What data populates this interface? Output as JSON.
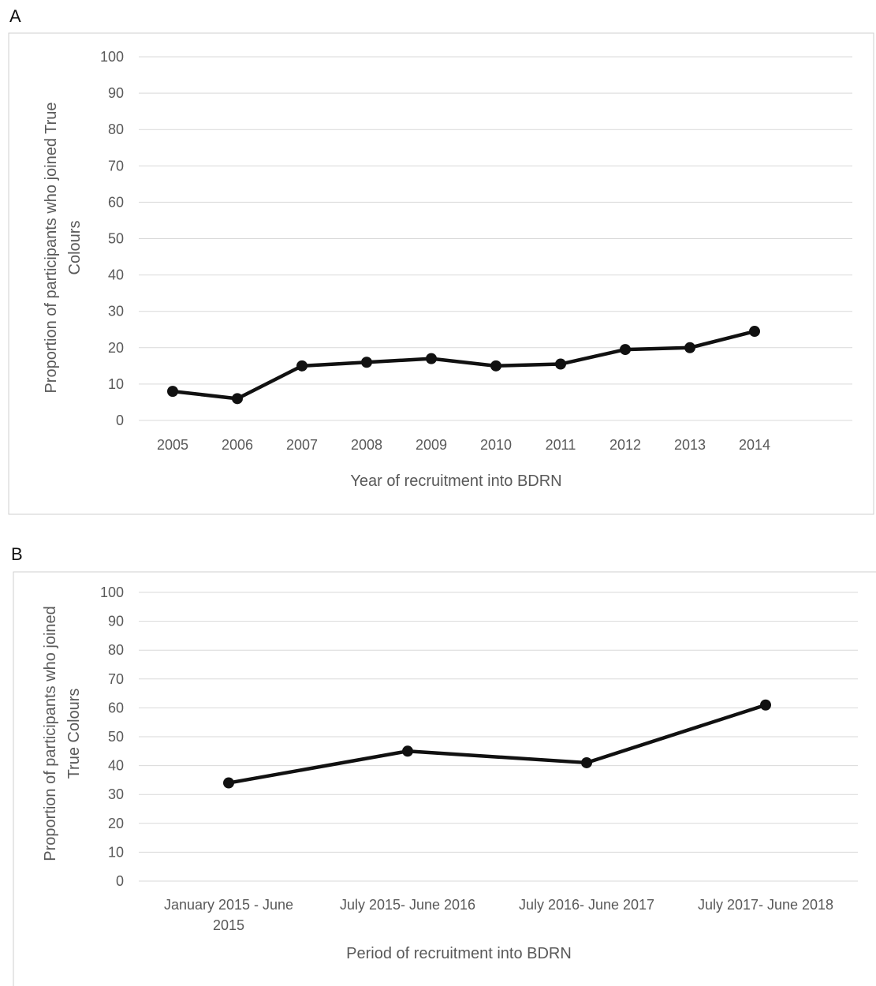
{
  "panels": {
    "a_label": "A",
    "b_label": "B"
  },
  "chart_data": [
    {
      "type": "line",
      "panel": "A",
      "categories": [
        "2005",
        "2006",
        "2007",
        "2008",
        "2009",
        "2010",
        "2011",
        "2012",
        "2013",
        "2014"
      ],
      "series": [
        {
          "values": [
            8,
            6,
            15,
            16,
            17,
            15,
            15.5,
            19.5,
            20,
            24.5
          ]
        }
      ],
      "ylabel_lines": [
        "Proportion of participants who joined True",
        "Colours"
      ],
      "xlabel": "Year of recruitment into BDRN",
      "ylim": [
        0,
        100
      ],
      "yticks": [
        0,
        10,
        20,
        30,
        40,
        50,
        60,
        70,
        80,
        90,
        100
      ],
      "grid": true
    },
    {
      "type": "line",
      "panel": "B",
      "categories": [
        "January 2015 - June 2015",
        "July 2015- June 2016",
        "July 2016- June 2017",
        "July 2017- June 2018"
      ],
      "category_lines": [
        [
          "January 2015 - June",
          "2015"
        ],
        [
          "July 2015- June 2016"
        ],
        [
          "July 2016- June 2017"
        ],
        [
          "July 2017- June 2018"
        ]
      ],
      "series": [
        {
          "values": [
            34,
            45,
            41,
            61
          ]
        }
      ],
      "ylabel_lines": [
        "Proportion of participants who joined",
        "True Colours"
      ],
      "xlabel": "Period of recruitment into BDRN",
      "ylim": [
        0,
        100
      ],
      "yticks": [
        0,
        10,
        20,
        30,
        40,
        50,
        60,
        70,
        80,
        90,
        100
      ],
      "grid": true
    }
  ]
}
